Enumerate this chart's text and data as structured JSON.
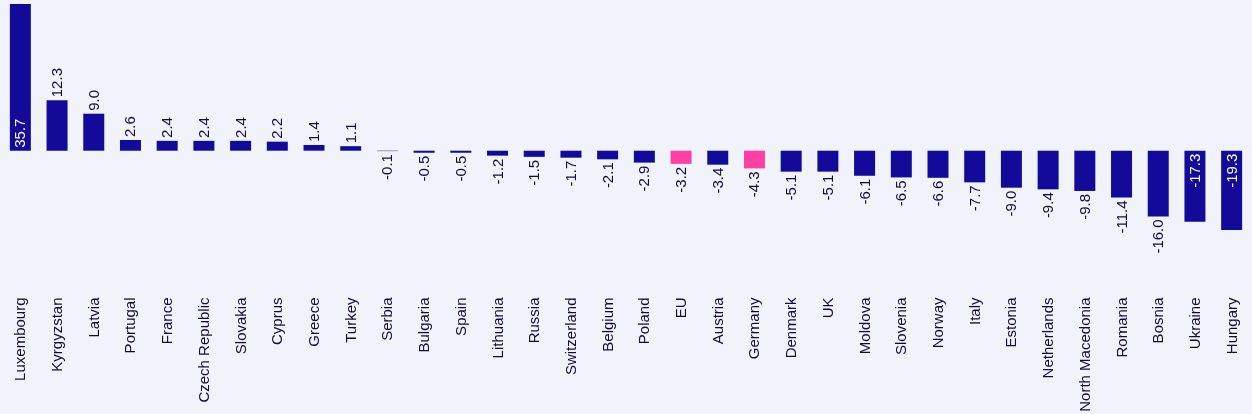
{
  "chart_data": {
    "type": "bar",
    "categories": [
      "Luxembourg",
      "Kyrgyzstan",
      "Latvia",
      "Portugal",
      "France",
      "Czech Republic",
      "Slovakia",
      "Cyprus",
      "Greece",
      "Turkey",
      "Serbia",
      "Bulgaria",
      "Spain",
      "Lithuania",
      "Russia",
      "Switzerland",
      "Belgium",
      "Poland",
      "EU",
      "Austria",
      "Germany",
      "Denmark",
      "UK",
      "Moldova",
      "Slovenia",
      "Norway",
      "Italy",
      "Estonia",
      "Netherlands",
      "North Macedonia",
      "Romania",
      "Bosnia",
      "Ukraine",
      "Hungary"
    ],
    "values": [
      35.7,
      12.3,
      9.0,
      2.6,
      2.4,
      2.4,
      2.4,
      2.2,
      1.4,
      1.1,
      -0.1,
      -0.5,
      -0.5,
      -1.2,
      -1.5,
      -1.7,
      -2.1,
      -2.9,
      -3.2,
      -3.4,
      -4.3,
      -5.1,
      -5.1,
      -6.1,
      -6.5,
      -6.6,
      -7.7,
      -9.0,
      -9.4,
      -9.8,
      -11.4,
      -16.0,
      -17.3,
      -19.3
    ],
    "value_labels": [
      "35.7",
      "12.3",
      "9.0",
      "2.6",
      "2.4",
      "2.4",
      "2.4",
      "2.2",
      "1.4",
      "1.1",
      "-0.1",
      "-0.5",
      "-0.5",
      "-1.2",
      "-1.5",
      "-1.7",
      "-2.1",
      "-2.9",
      "-3.2",
      "-3.4",
      "-4.3",
      "-5.1",
      "-5.1",
      "-6.1",
      "-6.5",
      "-6.6",
      "-7.7",
      "-9.0",
      "-9.4",
      "-9.8",
      "-11.4",
      "-16.0",
      "-17.3",
      "-19.3"
    ],
    "colors": [
      "#140a9a",
      "#140a9a",
      "#140a9a",
      "#140a9a",
      "#140a9a",
      "#140a9a",
      "#140a9a",
      "#140a9a",
      "#140a9a",
      "#140a9a",
      "#140a9a",
      "#140a9a",
      "#140a9a",
      "#140a9a",
      "#140a9a",
      "#140a9a",
      "#140a9a",
      "#140a9a",
      "#ff3fa4",
      "#140a9a",
      "#ff3fa4",
      "#140a9a",
      "#140a9a",
      "#140a9a",
      "#140a9a",
      "#140a9a",
      "#140a9a",
      "#140a9a",
      "#140a9a",
      "#140a9a",
      "#140a9a",
      "#140a9a",
      "#140a9a",
      "#140a9a"
    ],
    "grid": false
  }
}
